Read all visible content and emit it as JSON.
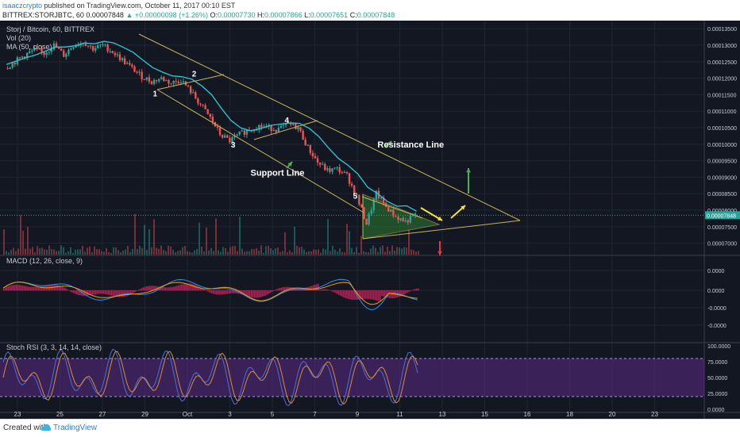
{
  "header": {
    "username": "isaaczcrypto",
    "published": " published on TradingView.com, October 11, 2017 00:10 EST",
    "symbol": "BITTREX:STORJBTC, 60",
    "last": "0.00007848",
    "change": "▲ +0.00000098 (+1.26%)",
    "o_label": "O:",
    "o": "0.00007730",
    "h_label": "H:",
    "h": "0.00007866",
    "l_label": "L:",
    "l": "0.00007651",
    "c_label": "C:",
    "c": "0.00007848"
  },
  "legend": {
    "title": "Storj / Bitcoin, 60, BITTREX",
    "vol": "Vol (20)",
    "ma": "MA (50, close)"
  },
  "footer": {
    "created_with": "Created with",
    "brand": "TradingView"
  },
  "colors": {
    "background": "#131722",
    "up": "#26a69a",
    "down": "#ef5350",
    "ma": "#2ec7d4",
    "trend": "#c9b458",
    "arrow_green": "#4caf50",
    "arrow_yellow": "#f2e33b",
    "arrow_red": "#e53935",
    "macd": "#2196f3",
    "signal": "#ff9800",
    "stoch_k": "#4c6fd8",
    "stoch_d": "#d98b3a",
    "stoch_band": "#5b2a84"
  },
  "chart_data": [
    {
      "type": "candlestick",
      "title": "Storj / Bitcoin, 60, BITTREX",
      "x_ticks": [
        "23",
        "25",
        "27",
        "29",
        "Oct",
        "3",
        "5",
        "7",
        "9",
        "11",
        "13",
        "15",
        "16",
        "18",
        "20",
        "23"
      ],
      "y_ticks": [
        "0.00013500",
        "0.00013000",
        "0.00012500",
        "0.00012000",
        "0.00011500",
        "0.00011000",
        "0.00010500",
        "0.00010000",
        "0.00009500",
        "0.00009000",
        "0.00008500",
        "0.00008000",
        "0.00007500",
        "0.00007000"
      ],
      "ylim": [
        6.75e-05,
        0.0001365
      ],
      "last_price_label": "0.00007848",
      "series_points": [
        {
          "t": 0,
          "p": 0.000123
        },
        {
          "t": 1,
          "p": 0.000125
        },
        {
          "t": 2,
          "p": 0.000127
        },
        {
          "t": 3,
          "p": 0.0001285
        },
        {
          "t": 4,
          "p": 0.0001275
        },
        {
          "t": 5,
          "p": 0.00013
        },
        {
          "t": 6,
          "p": 0.000127
        },
        {
          "t": 7,
          "p": 0.00013
        },
        {
          "t": 8,
          "p": 0.000131
        },
        {
          "t": 9,
          "p": 0.000129
        },
        {
          "t": 10,
          "p": 0.00013
        },
        {
          "t": 11,
          "p": 0.000128
        },
        {
          "t": 12,
          "p": 0.0001255
        },
        {
          "t": 13,
          "p": 0.000123
        },
        {
          "t": 14,
          "p": 0.0001205
        },
        {
          "t": 15,
          "p": 0.000119
        },
        {
          "t": 16,
          "p": 0.00012
        },
        {
          "t": 17,
          "p": 0.0001185
        },
        {
          "t": 18,
          "p": 0.0001195
        },
        {
          "t": 19,
          "p": 0.000116
        },
        {
          "t": 20,
          "p": 0.000112
        },
        {
          "t": 21,
          "p": 0.000108
        },
        {
          "t": 22,
          "p": 0.000103
        },
        {
          "t": 23,
          "p": 0.000101
        },
        {
          "t": 24,
          "p": 0.000103
        },
        {
          "t": 25,
          "p": 0.0001045
        },
        {
          "t": 26,
          "p": 0.0001055
        },
        {
          "t": 27,
          "p": 0.000105
        },
        {
          "t": 28,
          "p": 0.0001045
        },
        {
          "t": 29,
          "p": 0.000106
        },
        {
          "t": 30,
          "p": 0.000105
        },
        {
          "t": 31,
          "p": 9.9e-05
        },
        {
          "t": 32,
          "p": 9.45e-05
        },
        {
          "t": 33,
          "p": 9.2e-05
        },
        {
          "t": 34,
          "p": 9.25e-05
        },
        {
          "t": 35,
          "p": 9.05e-05
        },
        {
          "t": 36,
          "p": 8.4e-05
        },
        {
          "t": 37,
          "p": 7.6e-05
        },
        {
          "t": 38,
          "p": 8.5e-05
        },
        {
          "t": 39,
          "p": 8.1e-05
        },
        {
          "t": 40,
          "p": 7.8e-05
        },
        {
          "t": 41,
          "p": 7.65e-05
        },
        {
          "t": 42,
          "p": 7.85e-05
        }
      ],
      "annotations": [
        {
          "text": "1",
          "t": 15,
          "p": 0.0001145
        },
        {
          "text": "2",
          "t": 19,
          "p": 0.0001205
        },
        {
          "text": "3",
          "t": 23,
          "p": 9.9e-05
        },
        {
          "text": "4",
          "t": 28.5,
          "p": 0.0001065
        },
        {
          "text": "5",
          "t": 35.5,
          "p": 8.35e-05
        },
        {
          "text": "Resistance Line",
          "t": 38,
          "p": 9.9e-05
        },
        {
          "text": "Support Line",
          "t": 25,
          "p": 9.05e-05
        }
      ]
    },
    {
      "type": "line",
      "title": "MACD (12, 26, close, 9)",
      "y_ticks": [
        "0.0000",
        "0.0000",
        "-0.0000",
        "-0.0000"
      ]
    },
    {
      "type": "line",
      "title": "Stoch RSI (3, 3, 14, 14, close)",
      "y_ticks": [
        "100.0000",
        "75.0000",
        "50.0000",
        "25.0000",
        "0.0000"
      ],
      "ylim": [
        0,
        100
      ]
    }
  ]
}
